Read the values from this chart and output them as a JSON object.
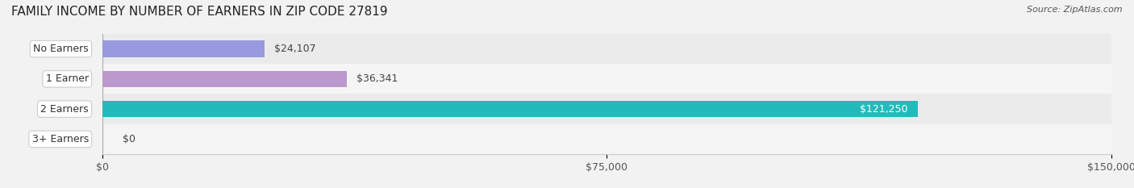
{
  "title": "FAMILY INCOME BY NUMBER OF EARNERS IN ZIP CODE 27819",
  "source": "Source: ZipAtlas.com",
  "categories": [
    "No Earners",
    "1 Earner",
    "2 Earners",
    "3+ Earners"
  ],
  "values": [
    24107,
    36341,
    121250,
    0
  ],
  "bar_colors": [
    "#9999dd",
    "#bb99cc",
    "#22bbbb",
    "#aabbdd"
  ],
  "label_colors": [
    "#333333",
    "#333333",
    "#ffffff",
    "#333333"
  ],
  "value_labels": [
    "$24,107",
    "$36,341",
    "$121,250",
    "$0"
  ],
  "xlim": [
    0,
    150000
  ],
  "xticks": [
    0,
    75000,
    150000
  ],
  "xtick_labels": [
    "$0",
    "$75,000",
    "$150,000"
  ],
  "bar_height": 0.55,
  "background_color": "#f0f0f0",
  "row_bg_colors": [
    "#f8f8f8",
    "#f0f0f0"
  ],
  "title_fontsize": 11,
  "source_fontsize": 8,
  "label_fontsize": 9,
  "value_fontsize": 9,
  "tick_fontsize": 9
}
